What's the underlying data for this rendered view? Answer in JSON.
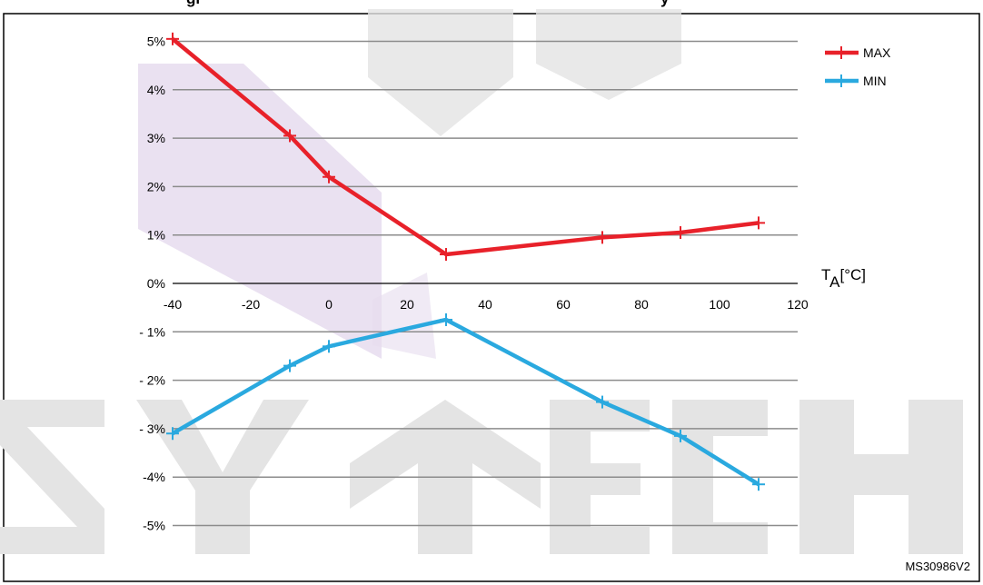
{
  "header": {
    "title_fragments": [
      "gr",
      "y"
    ]
  },
  "watermark": {
    "text": "SKYTECH",
    "color": "#e6dcef",
    "letter_color": "#e4e4e4"
  },
  "chart_data": {
    "type": "line",
    "x": [
      -40,
      -10,
      0,
      30,
      70,
      90,
      110
    ],
    "series": [
      {
        "name": "MAX",
        "color": "#e8212a",
        "values": [
          5.05,
          3.05,
          2.2,
          0.6,
          0.95,
          1.05,
          1.25
        ]
      },
      {
        "name": "MIN",
        "color": "#2aa9df",
        "values": [
          -3.1,
          -1.7,
          -1.3,
          -0.75,
          -2.45,
          -3.15,
          -4.15
        ]
      }
    ],
    "xlim": [
      -40,
      120
    ],
    "ylim": [
      -5,
      5
    ],
    "x_ticks": [
      -40,
      -20,
      0,
      20,
      40,
      60,
      80,
      100,
      120
    ],
    "x_tick_labels": [
      "-40",
      "-20",
      "0",
      "20",
      "40",
      "60",
      "80",
      "100",
      "120"
    ],
    "y_ticks": [
      5,
      4,
      3,
      2,
      1,
      0,
      -1,
      -2,
      -3,
      -4,
      -5
    ],
    "y_tick_labels": [
      "5%",
      "4%",
      "3%",
      "2%",
      "1%",
      "0%",
      "- 1%",
      "- 2%",
      "- 3%",
      "-4%",
      "-5%"
    ],
    "xlabel_main": "T",
    "xlabel_sub": "A",
    "xlabel_unit": "[°C]",
    "ylabel": "",
    "grid": "horizontal",
    "grid_color": "#8c8c8c",
    "legend_position": "top-right",
    "figure_id": "MS30986V2"
  }
}
